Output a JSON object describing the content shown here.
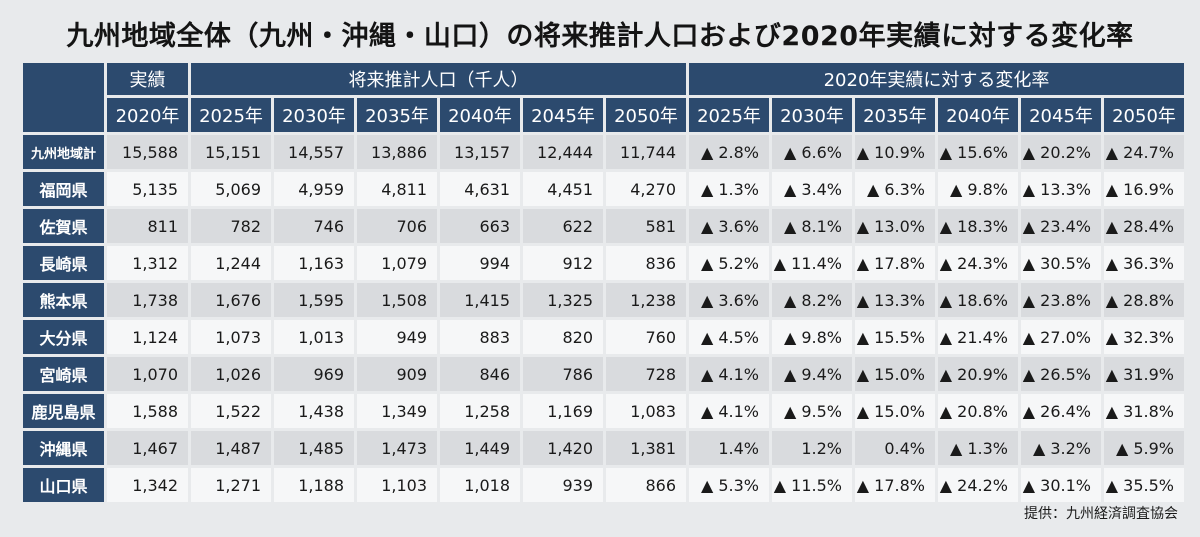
{
  "title": "九州地域全体（九州・沖縄・山口）の将来推計人口および2020年実績に対する変化率",
  "header": {
    "group_actual": "実績",
    "group_projection": "将来推計人口（千人）",
    "group_change": "2020年実績に対する変化率",
    "years_actual": [
      "2020年"
    ],
    "years_projection": [
      "2025年",
      "2030年",
      "2035年",
      "2040年",
      "2045年",
      "2050年"
    ],
    "years_change": [
      "2025年",
      "2030年",
      "2035年",
      "2040年",
      "2045年",
      "2050年"
    ]
  },
  "rows": [
    {
      "label": "九州地域計",
      "values": [
        "15,588",
        "15,151",
        "14,557",
        "13,886",
        "13,157",
        "12,444",
        "11,744"
      ],
      "changes": [
        "▲ 2.8%",
        "▲ 6.6%",
        "▲ 10.9%",
        "▲ 15.6%",
        "▲ 20.2%",
        "▲ 24.7%"
      ]
    },
    {
      "label": "福岡県",
      "values": [
        "5,135",
        "5,069",
        "4,959",
        "4,811",
        "4,631",
        "4,451",
        "4,270"
      ],
      "changes": [
        "▲ 1.3%",
        "▲ 3.4%",
        "▲ 6.3%",
        "▲ 9.8%",
        "▲ 13.3%",
        "▲ 16.9%"
      ]
    },
    {
      "label": "佐賀県",
      "values": [
        "811",
        "782",
        "746",
        "706",
        "663",
        "622",
        "581"
      ],
      "changes": [
        "▲ 3.6%",
        "▲ 8.1%",
        "▲ 13.0%",
        "▲ 18.3%",
        "▲ 23.4%",
        "▲ 28.4%"
      ]
    },
    {
      "label": "長崎県",
      "values": [
        "1,312",
        "1,244",
        "1,163",
        "1,079",
        "994",
        "912",
        "836"
      ],
      "changes": [
        "▲ 5.2%",
        "▲ 11.4%",
        "▲ 17.8%",
        "▲ 24.3%",
        "▲ 30.5%",
        "▲ 36.3%"
      ]
    },
    {
      "label": "熊本県",
      "values": [
        "1,738",
        "1,676",
        "1,595",
        "1,508",
        "1,415",
        "1,325",
        "1,238"
      ],
      "changes": [
        "▲ 3.6%",
        "▲ 8.2%",
        "▲ 13.3%",
        "▲ 18.6%",
        "▲ 23.8%",
        "▲ 28.8%"
      ]
    },
    {
      "label": "大分県",
      "values": [
        "1,124",
        "1,073",
        "1,013",
        "949",
        "883",
        "820",
        "760"
      ],
      "changes": [
        "▲ 4.5%",
        "▲ 9.8%",
        "▲ 15.5%",
        "▲ 21.4%",
        "▲ 27.0%",
        "▲ 32.3%"
      ]
    },
    {
      "label": "宮崎県",
      "values": [
        "1,070",
        "1,026",
        "969",
        "909",
        "846",
        "786",
        "728"
      ],
      "changes": [
        "▲ 4.1%",
        "▲ 9.4%",
        "▲ 15.0%",
        "▲ 20.9%",
        "▲ 26.5%",
        "▲ 31.9%"
      ]
    },
    {
      "label": "鹿児島県",
      "values": [
        "1,588",
        "1,522",
        "1,438",
        "1,349",
        "1,258",
        "1,169",
        "1,083"
      ],
      "changes": [
        "▲ 4.1%",
        "▲ 9.5%",
        "▲ 15.0%",
        "▲ 20.8%",
        "▲ 26.4%",
        "▲ 31.8%"
      ]
    },
    {
      "label": "沖縄県",
      "values": [
        "1,467",
        "1,487",
        "1,485",
        "1,473",
        "1,449",
        "1,420",
        "1,381"
      ],
      "changes": [
        "1.4%",
        "1.2%",
        "0.4%",
        "▲ 1.3%",
        "▲ 3.2%",
        "▲ 5.9%"
      ]
    },
    {
      "label": "山口県",
      "values": [
        "1,342",
        "1,271",
        "1,188",
        "1,103",
        "1,018",
        "939",
        "866"
      ],
      "changes": [
        "▲ 5.3%",
        "▲ 11.5%",
        "▲ 17.8%",
        "▲ 24.2%",
        "▲ 30.1%",
        "▲ 35.5%"
      ]
    }
  ],
  "credit": "提供：九州経済調査協会",
  "colors": {
    "header_bg": "#2c4a6e",
    "row_odd_bg": "#d9dbde",
    "row_even_bg": "#f6f7f8",
    "page_bg": "#e8eaec"
  }
}
